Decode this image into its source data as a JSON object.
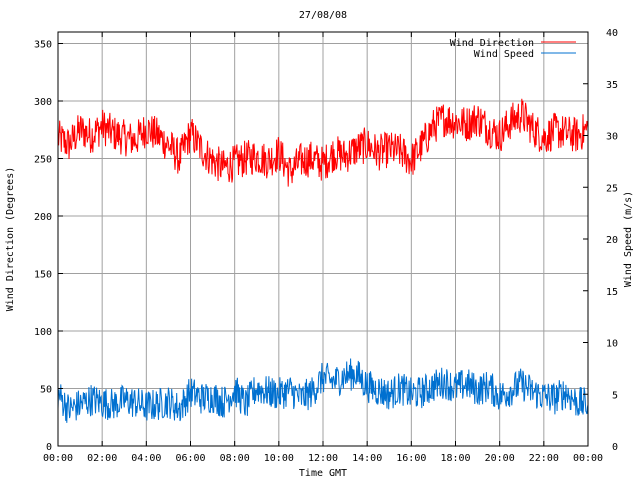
{
  "chart_data": {
    "type": "line",
    "title": "27/08/08",
    "xlabel": "Time GMT",
    "ylabel_left": "Wind Direction (Degrees)",
    "ylabel_right": "Wind Speed (m/s)",
    "x_tick_labels": [
      "00:00",
      "02:00",
      "04:00",
      "06:00",
      "08:00",
      "10:00",
      "12:00",
      "14:00",
      "16:00",
      "18:00",
      "20:00",
      "22:00",
      "00:00"
    ],
    "x_range_hours": [
      0,
      24
    ],
    "y_left_range": [
      0,
      360
    ],
    "y_left_ticks": [
      0,
      50,
      100,
      150,
      200,
      250,
      300,
      350
    ],
    "y_right_range": [
      0,
      40
    ],
    "y_right_ticks": [
      0,
      5,
      10,
      15,
      20,
      25,
      30,
      35,
      40
    ],
    "grid": true,
    "legend_position": "top-right",
    "series": [
      {
        "name": "Wind Direction",
        "color": "#ff0000",
        "axis": "left",
        "x": [
          0,
          0.5,
          1,
          1.5,
          2,
          2.5,
          3,
          3.5,
          4,
          4.5,
          5,
          5.5,
          6,
          6.5,
          7,
          7.5,
          8,
          8.5,
          9,
          9.5,
          10,
          10.5,
          11,
          11.5,
          12,
          12.5,
          13,
          13.5,
          14,
          14.5,
          15,
          15.5,
          16,
          16.5,
          17,
          17.5,
          18,
          18.5,
          19,
          19.5,
          20,
          20.5,
          21,
          21.5,
          22,
          22.5,
          23,
          23.5,
          24
        ],
        "values": [
          268,
          262,
          275,
          270,
          278,
          272,
          268,
          266,
          276,
          270,
          262,
          250,
          272,
          258,
          248,
          242,
          246,
          250,
          252,
          248,
          255,
          238,
          248,
          250,
          245,
          255,
          252,
          258,
          262,
          255,
          258,
          256,
          248,
          262,
          278,
          285,
          282,
          280,
          285,
          276,
          270,
          282,
          288,
          276,
          268,
          274,
          272,
          270,
          276
        ]
      },
      {
        "name": "Wind Speed",
        "color": "#0070d0",
        "axis": "right",
        "x": [
          0,
          0.5,
          1,
          1.5,
          2,
          2.5,
          3,
          3.5,
          4,
          4.5,
          5,
          5.5,
          6,
          6.5,
          7,
          7.5,
          8,
          8.5,
          9,
          9.5,
          10,
          10.5,
          11,
          11.5,
          12,
          12.5,
          13,
          13.5,
          14,
          14.5,
          15,
          15.5,
          16,
          16.5,
          17,
          17.5,
          18,
          18.5,
          19,
          19.5,
          20,
          20.5,
          21,
          21.5,
          22,
          22.5,
          23,
          23.5,
          24
        ],
        "values": [
          5.0,
          3.5,
          4.0,
          4.5,
          4.2,
          4.0,
          4.4,
          4.2,
          3.8,
          4.0,
          4.3,
          3.6,
          5.2,
          4.6,
          4.8,
          4.2,
          5.4,
          4.0,
          5.6,
          5.2,
          5.0,
          5.4,
          4.6,
          5.2,
          6.6,
          6.2,
          6.8,
          7.0,
          5.8,
          5.4,
          5.0,
          5.6,
          5.0,
          5.2,
          5.8,
          6.2,
          5.6,
          6.0,
          5.4,
          5.8,
          4.8,
          5.4,
          6.0,
          5.2,
          4.8,
          4.6,
          5.2,
          4.2,
          4.0
        ]
      }
    ]
  }
}
